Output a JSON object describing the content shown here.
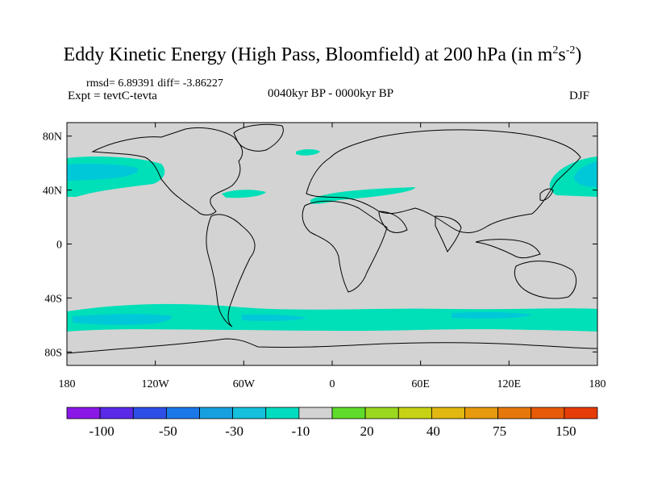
{
  "title": {
    "main": "Eddy Kinetic Energy (High Pass, Bloomfield) at 200 hPa (in m",
    "unit_sup1": "2",
    "unit_mid": "s",
    "unit_sup2": "-2",
    "close": ")"
  },
  "stats": "rmsd= 6.89391 diff= -3.86227",
  "expt": "Expt = tevtC-tevta",
  "period": "0040kyr BP - 0000kyr BP",
  "season": "DJF",
  "colors": {
    "background": "#d3d3d3",
    "land_outline": "#000000",
    "contour_-10": "#00e0b8",
    "contour_-30": "#00c8d8"
  },
  "axes": {
    "lat_ticks": [
      {
        "value": 80,
        "label": "80N"
      },
      {
        "value": 40,
        "label": "40N"
      },
      {
        "value": 0,
        "label": "0"
      },
      {
        "value": -40,
        "label": "40S"
      },
      {
        "value": -80,
        "label": "80S"
      }
    ],
    "lon_ticks": [
      {
        "value": -180,
        "label": "180"
      },
      {
        "value": -120,
        "label": "120W"
      },
      {
        "value": -60,
        "label": "60W"
      },
      {
        "value": 0,
        "label": "0"
      },
      {
        "value": 60,
        "label": "60E"
      },
      {
        "value": 120,
        "label": "120E"
      },
      {
        "value": 180,
        "label": "180"
      }
    ],
    "lon_range": [
      -180,
      180
    ],
    "lat_range": [
      -90,
      90
    ]
  },
  "colorbar": {
    "colors": [
      "#8a17e8",
      "#5a2ae8",
      "#2e4ee8",
      "#1b78e8",
      "#16a0e0",
      "#14c0dc",
      "#00dcc0",
      "#d3d3d3",
      "#5fdc2a",
      "#9ad81e",
      "#c8d214",
      "#e0b810",
      "#e69a0c",
      "#e6780a",
      "#e65a08",
      "#e63c06"
    ],
    "labels": [
      {
        "boundary": 1,
        "text": "-100"
      },
      {
        "boundary": 3,
        "text": "-50"
      },
      {
        "boundary": 5,
        "text": "-30"
      },
      {
        "boundary": 7,
        "text": "-10"
      },
      {
        "boundary": 9,
        "text": "20"
      },
      {
        "boundary": 11,
        "text": "40"
      },
      {
        "boundary": 13,
        "text": "75"
      },
      {
        "boundary": 15,
        "text": "150"
      }
    ]
  }
}
